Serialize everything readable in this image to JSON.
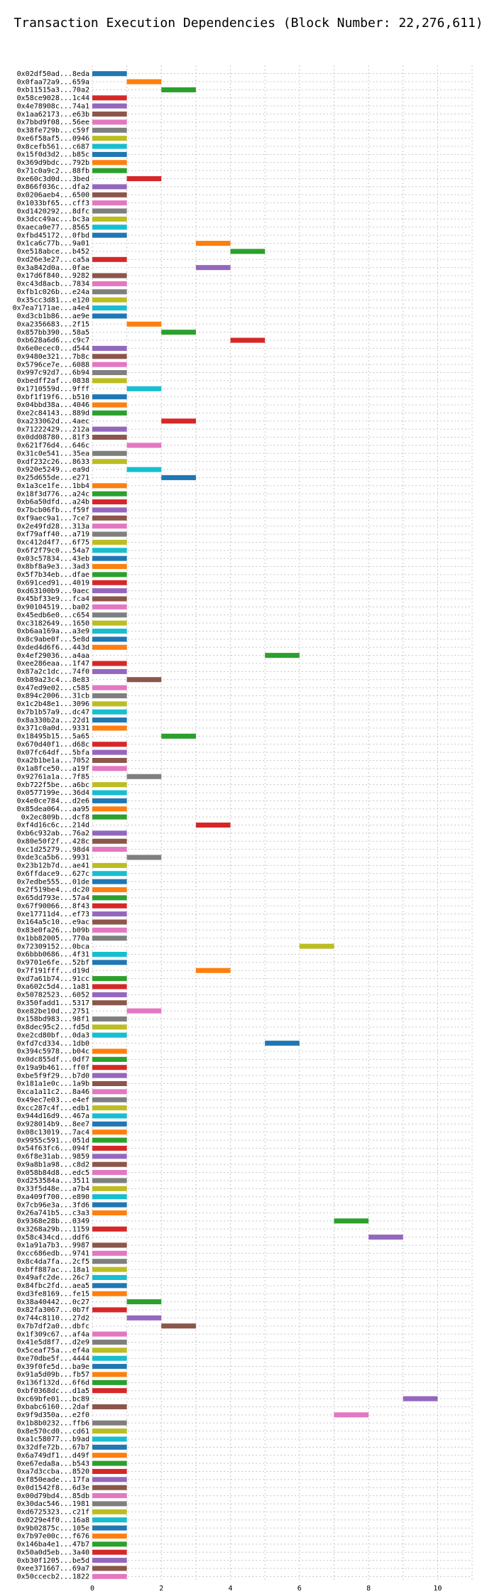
{
  "chart_data": {
    "type": "bar",
    "orientation": "horizontal-gantt",
    "title": "Transaction Execution Dependencies (Block Number: 22,276,611)",
    "xlabel": "",
    "ylabel": "",
    "xlim": [
      0,
      11
    ],
    "x_ticks": [
      0,
      2,
      4,
      6,
      8,
      10
    ],
    "grid": true,
    "grid_style": "dotted",
    "palette": [
      "#1f77b4",
      "#ff7f0e",
      "#2ca02c",
      "#d62728",
      "#9467bd",
      "#8c564b",
      "#e377c2",
      "#7f7f7f",
      "#bcbd22",
      "#17becf"
    ],
    "rows": [
      {
        "label": "0x02df50ad...8eda",
        "start": 0
      },
      {
        "label": "0x0faa72a9...659a",
        "start": 1
      },
      {
        "label": "0xb11515a3...70a2",
        "start": 2
      },
      {
        "label": "0x58ce9028...1c44",
        "start": 0
      },
      {
        "label": "0x4e78908c...74a1",
        "start": 0
      },
      {
        "label": "0x1aa62173...e63b",
        "start": 0
      },
      {
        "label": "0x7bbd9f08...56ee",
        "start": 0
      },
      {
        "label": "0x38fe729b...c59f",
        "start": 0
      },
      {
        "label": "0xe6f58af5...0946",
        "start": 0
      },
      {
        "label": "0x8cefb561...c687",
        "start": 0
      },
      {
        "label": "0x15f0d3d2...b85c",
        "start": 0
      },
      {
        "label": "0x369d9bdc...792b",
        "start": 0
      },
      {
        "label": "0x71c0a9c2...88fb",
        "start": 0
      },
      {
        "label": "0xe60c3d0d...3bed",
        "start": 1
      },
      {
        "label": "0x866f036c...dfa2",
        "start": 0
      },
      {
        "label": "0x0206aeb4...6500",
        "start": 0
      },
      {
        "label": "0x1033bf65...cff3",
        "start": 0
      },
      {
        "label": "0xd1420292...8dfc",
        "start": 0
      },
      {
        "label": "0x3dcc49ac...bc3a",
        "start": 0
      },
      {
        "label": "0xaeca0e77...8565",
        "start": 0
      },
      {
        "label": "0xfbd45172...0fbd",
        "start": 0
      },
      {
        "label": "0x1ca6c77b...9a01",
        "start": 3
      },
      {
        "label": "0xe518abce...b452",
        "start": 4
      },
      {
        "label": "0xd26e3e27...ca5a",
        "start": 0
      },
      {
        "label": "0x3a842d0a...0fae",
        "start": 3
      },
      {
        "label": "0x17d6f840...9282",
        "start": 0
      },
      {
        "label": "0xc43d8acb...7834",
        "start": 0
      },
      {
        "label": "0xfb1c026b...e24a",
        "start": 0
      },
      {
        "label": "0x35cc3d81...e120",
        "start": 0
      },
      {
        "label": "0x7ea7171ae...a4e4",
        "start": 0
      },
      {
        "label": "0xd3cb1b86...ae9e",
        "start": 0
      },
      {
        "label": "0xa2356683...2f15",
        "start": 1
      },
      {
        "label": "0x857bb390...58a5",
        "start": 2
      },
      {
        "label": "0xb628a6d6...c9c7",
        "start": 4
      },
      {
        "label": "0x6e0ecec0...d544",
        "start": 0
      },
      {
        "label": "0x9480e321...7b8c",
        "start": 0
      },
      {
        "label": "0x5796ce7e...6088",
        "start": 0
      },
      {
        "label": "0x997c92d7...6b94",
        "start": 0
      },
      {
        "label": "0xbedff2af...0838",
        "start": 0
      },
      {
        "label": "0x1710559d...9fff",
        "start": 1
      },
      {
        "label": "0xbf1f19f6...b510",
        "start": 0
      },
      {
        "label": "0x04bbd38a...4046",
        "start": 0
      },
      {
        "label": "0xe2c84143...889d",
        "start": 0
      },
      {
        "label": "0xa233062d...4aec",
        "start": 2
      },
      {
        "label": "0x71222429...212a",
        "start": 0
      },
      {
        "label": "0x0dd08780...81f3",
        "start": 0
      },
      {
        "label": "0x621f76d4...646c",
        "start": 1
      },
      {
        "label": "0x31c0e541...35ea",
        "start": 0
      },
      {
        "label": "0xdf232c26...8633",
        "start": 0
      },
      {
        "label": "0x920e5249...ea9d",
        "start": 1
      },
      {
        "label": "0x25d655de...e271",
        "start": 2
      },
      {
        "label": "0x1a3ce1fe...1bb4",
        "start": 0
      },
      {
        "label": "0x18f3d776...a24c",
        "start": 0
      },
      {
        "label": "0xb6a50dfd...a24b",
        "start": 0
      },
      {
        "label": "0x7bcb06fb...f59f",
        "start": 0
      },
      {
        "label": "0xf9aec9a1...7ce7",
        "start": 0
      },
      {
        "label": "0x2e49fd28...313a",
        "start": 0
      },
      {
        "label": "0xf79aff40...a719",
        "start": 0
      },
      {
        "label": "0xc412d4f7...6f75",
        "start": 0
      },
      {
        "label": "0x6f2f79c0...54a7",
        "start": 0
      },
      {
        "label": "0x03c57834...43eb",
        "start": 0
      },
      {
        "label": "0x8bf8a9e3...3ad3",
        "start": 0
      },
      {
        "label": "0x5f7b34eb...dfae",
        "start": 0
      },
      {
        "label": "0x691ced91...4019",
        "start": 0
      },
      {
        "label": "0xd63100b9...9aec",
        "start": 0
      },
      {
        "label": "0x45bf33e9...fca4",
        "start": 0
      },
      {
        "label": "0x90104519...ba02",
        "start": 0
      },
      {
        "label": "0x45edb6e0...c654",
        "start": 0
      },
      {
        "label": "0xc3182649...1650",
        "start": 0
      },
      {
        "label": "0xb6aa169a...a3e9",
        "start": 0
      },
      {
        "label": "0x8c9abe0f...5e8d",
        "start": 0
      },
      {
        "label": "0xded4d6f6...443d",
        "start": 0
      },
      {
        "label": "0x4ef29036...a4aa",
        "start": 5
      },
      {
        "label": "0xee286eaa...1f47",
        "start": 0
      },
      {
        "label": "0x87a2c1dc...74f0",
        "start": 0
      },
      {
        "label": "0xb89a23c4...8e83",
        "start": 1
      },
      {
        "label": "0x47ed9e02...c585",
        "start": 0
      },
      {
        "label": "0x894c2006...31cb",
        "start": 0
      },
      {
        "label": "0x1c2b48e1...3096",
        "start": 0
      },
      {
        "label": "0x7b1b57a9...dc47",
        "start": 0
      },
      {
        "label": "0x8a330b2a...22d1",
        "start": 0
      },
      {
        "label": "0x371c0a0d...9331",
        "start": 0
      },
      {
        "label": "0x18495b15...5a65",
        "start": 2
      },
      {
        "label": "0x670d40f1...d68c",
        "start": 0
      },
      {
        "label": "0x07fc64df...5bfa",
        "start": 0
      },
      {
        "label": "0xa2b1be1a...7052",
        "start": 0
      },
      {
        "label": "0x1a8fce50...a19f",
        "start": 0
      },
      {
        "label": "0x92761a1a...7f85",
        "start": 1
      },
      {
        "label": "0xb722f5be...a6bc",
        "start": 0
      },
      {
        "label": "0x0577199e...36d4",
        "start": 0
      },
      {
        "label": "0x4e0ce784...d2e6",
        "start": 0
      },
      {
        "label": "0x85dea064...aa95",
        "start": 0
      },
      {
        "label": "0x2ec809b...dcf8",
        "start": 0
      },
      {
        "label": "0xf4d16c6c...214d",
        "start": 3
      },
      {
        "label": "0xb6c932ab...76a2",
        "start": 0
      },
      {
        "label": "0x80e50f2f...428c",
        "start": 0
      },
      {
        "label": "0xc1d25279...98d4",
        "start": 0
      },
      {
        "label": "0xde3ca5b6...9931",
        "start": 1
      },
      {
        "label": "0x23b12b7d...ae41",
        "start": 0
      },
      {
        "label": "0x6ffdace9...627c",
        "start": 0
      },
      {
        "label": "0x7edbe555...01de",
        "start": 0
      },
      {
        "label": "0x2f519be4...dc20",
        "start": 0
      },
      {
        "label": "0x65dd793e...57a4",
        "start": 0
      },
      {
        "label": "0x67f90066...8f43",
        "start": 0
      },
      {
        "label": "0xe17711d4...ef73",
        "start": 0
      },
      {
        "label": "0x164a5c10...e9ac",
        "start": 0
      },
      {
        "label": "0x83e0fa26...b09b",
        "start": 0
      },
      {
        "label": "0x1bb82005...770a",
        "start": 0
      },
      {
        "label": "0x72309152...0bca",
        "start": 6
      },
      {
        "label": "0x6bbb0686...4f31",
        "start": 0
      },
      {
        "label": "0x9701e6fe...52bf",
        "start": 0
      },
      {
        "label": "0x7f191fff...d19d",
        "start": 3
      },
      {
        "label": "0xd7a61b74...91cc",
        "start": 0
      },
      {
        "label": "0xa602c5d4...1a81",
        "start": 0
      },
      {
        "label": "0x50782523...6052",
        "start": 0
      },
      {
        "label": "0x350fadd1...5317",
        "start": 0
      },
      {
        "label": "0xe82be10d...2751",
        "start": 1
      },
      {
        "label": "0x158bd983...98f1",
        "start": 0
      },
      {
        "label": "0x8dec95c2...fd5d",
        "start": 0
      },
      {
        "label": "0xe2cd80bf...0da3",
        "start": 0
      },
      {
        "label": "0xfd7cd334...1db0",
        "start": 5
      },
      {
        "label": "0x394c5978...b04c",
        "start": 0
      },
      {
        "label": "0x0dc855df...0df7",
        "start": 0
      },
      {
        "label": "0x19a9b461...ff0f",
        "start": 0
      },
      {
        "label": "0xbe5f9f29...b7d0",
        "start": 0
      },
      {
        "label": "0x181a1e0c...1a9b",
        "start": 0
      },
      {
        "label": "0xca1a11c2...8a46",
        "start": 0
      },
      {
        "label": "0x49ec7e03...e4ef",
        "start": 0
      },
      {
        "label": "0xcc287c4f...edb1",
        "start": 0
      },
      {
        "label": "0x944d16d9...467a",
        "start": 0
      },
      {
        "label": "0x928014b9...8ee7",
        "start": 0
      },
      {
        "label": "0x08c13019...7ac4",
        "start": 0
      },
      {
        "label": "0x9955c591...051d",
        "start": 0
      },
      {
        "label": "0x54f63fc6...094f",
        "start": 0
      },
      {
        "label": "0x6f8e31ab...9859",
        "start": 0
      },
      {
        "label": "0x9a8b1a98...c8d2",
        "start": 0
      },
      {
        "label": "0x058b84d8...edc5",
        "start": 0
      },
      {
        "label": "0xd253584a...3511",
        "start": 0
      },
      {
        "label": "0x33f5d48e...a7b4",
        "start": 0
      },
      {
        "label": "0xa409f700...e890",
        "start": 0
      },
      {
        "label": "0x7cb96e3a...3fd6",
        "start": 0
      },
      {
        "label": "0x26a741b5...c3a3",
        "start": 0
      },
      {
        "label": "0x9368e28b...0349",
        "start": 7
      },
      {
        "label": "0x3268a29b...1159",
        "start": 0
      },
      {
        "label": "0x58c434cd...ddf6",
        "start": 8
      },
      {
        "label": "0x1a91a7b3...9987",
        "start": 0
      },
      {
        "label": "0xcc686edb...9741",
        "start": 0
      },
      {
        "label": "0x8c4da7fa...2cf5",
        "start": 0
      },
      {
        "label": "0xbff887ac...18a1",
        "start": 0
      },
      {
        "label": "0x49afc2de...26c7",
        "start": 0
      },
      {
        "label": "0x84fbc2fd...aea5",
        "start": 0
      },
      {
        "label": "0xd3fe8169...fe15",
        "start": 0
      },
      {
        "label": "0x38a40442...0c27",
        "start": 1
      },
      {
        "label": "0x82fa3067...0b7f",
        "start": 0
      },
      {
        "label": "0x744c8110...27d2",
        "start": 1
      },
      {
        "label": "0x7b7df2a0...dbfc",
        "start": 2
      },
      {
        "label": "0x1f309c67...af4a",
        "start": 0
      },
      {
        "label": "0x41e5d8f7...d2e9",
        "start": 0
      },
      {
        "label": "0x5ceaf75a...ef4a",
        "start": 0
      },
      {
        "label": "0xe70dbe5f...4444",
        "start": 0
      },
      {
        "label": "0x39f0fe5d...ba9e",
        "start": 0
      },
      {
        "label": "0x91a5d09b...fb57",
        "start": 0
      },
      {
        "label": "0x136f132d...6f6d",
        "start": 0
      },
      {
        "label": "0xbf0368dc...d1a5",
        "start": 0
      },
      {
        "label": "0xc69bfe01...bc89",
        "start": 9
      },
      {
        "label": "0xbabc6160...2daf",
        "start": 0
      },
      {
        "label": "0x9f9d350a...e2f0",
        "start": 7
      },
      {
        "label": "0x1b8b0232...ffb6",
        "start": 0
      },
      {
        "label": "0x8e570cd0...cd61",
        "start": 0
      },
      {
        "label": "0xa1c58077...b9ad",
        "start": 0
      },
      {
        "label": "0x32dfe72b...67b7",
        "start": 0
      },
      {
        "label": "0x6a749df1...d49f",
        "start": 0
      },
      {
        "label": "0xe67eda8a...b543",
        "start": 0
      },
      {
        "label": "0xa7d3ccba...8520",
        "start": 0
      },
      {
        "label": "0xf850eade...17fa",
        "start": 0
      },
      {
        "label": "0x0d1542f8...6d3e",
        "start": 0
      },
      {
        "label": "0x00d79bd4...85db",
        "start": 0
      },
      {
        "label": "0x30dac546...1981",
        "start": 0
      },
      {
        "label": "0xd6725323...c21f",
        "start": 0
      },
      {
        "label": "0x0229e4f0...16a8",
        "start": 0
      },
      {
        "label": "0x9b02875c...105e",
        "start": 0
      },
      {
        "label": "0x7b97e00c...f676",
        "start": 0
      },
      {
        "label": "0x146ba4e1...47b7",
        "start": 0
      },
      {
        "label": "0x50a0d5eb...3a40",
        "start": 0
      },
      {
        "label": "0xb30f1205...be5d",
        "start": 0
      },
      {
        "label": "0xee371667...69a7",
        "start": 0
      },
      {
        "label": "0x50ccecb2...1822",
        "start": 0
      }
    ]
  }
}
